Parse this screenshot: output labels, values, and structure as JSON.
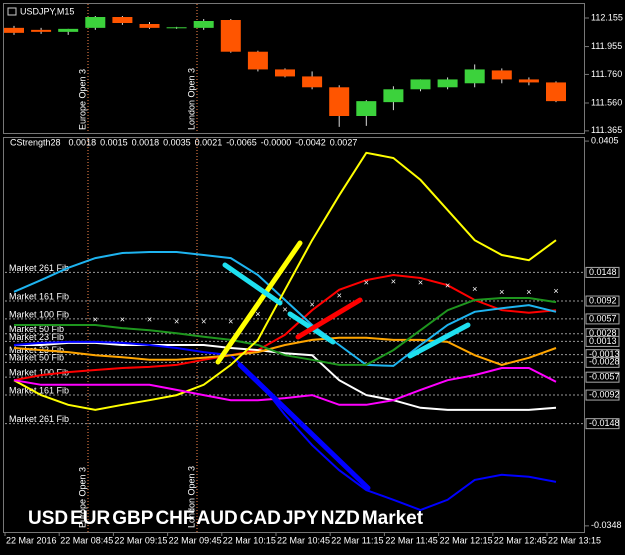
{
  "chart_data": [
    {
      "type": "candlestick",
      "title": "USDJPY,M15",
      "open": [
        112.086,
        112.072,
        112.058,
        112.086,
        112.162,
        112.113,
        112.086,
        112.086,
        112.141,
        111.919,
        111.795,
        111.746,
        111.67,
        111.469,
        111.566,
        111.656,
        111.67,
        111.698,
        111.788,
        111.725,
        111.704
      ],
      "high": [
        112.1,
        112.086,
        112.079,
        112.169,
        112.169,
        112.127,
        112.093,
        112.148,
        112.148,
        111.926,
        111.802,
        111.781,
        111.684,
        111.58,
        111.677,
        111.725,
        111.739,
        111.83,
        111.802,
        111.739,
        111.711
      ],
      "low": [
        112.037,
        112.044,
        112.037,
        112.072,
        112.107,
        112.079,
        112.079,
        112.072,
        111.912,
        111.781,
        111.739,
        111.656,
        111.393,
        111.4,
        111.51,
        111.642,
        111.656,
        111.67,
        111.698,
        111.684,
        111.566
      ],
      "close": [
        112.051,
        112.058,
        112.079,
        112.162,
        112.12,
        112.086,
        112.09,
        112.134,
        111.919,
        111.795,
        111.746,
        111.67,
        111.469,
        111.573,
        111.656,
        111.725,
        111.725,
        111.795,
        111.725,
        111.704,
        111.573
      ],
      "up_color": "#3cd23c",
      "down_color": "#ff5500",
      "ylim": [
        111.35,
        112.26
      ],
      "yticks": [
        112.155,
        111.955,
        {
          "value": 111.76,
          "label": "111.760"
        },
        {
          "value": 111.56,
          "label": "111.560"
        },
        111.365
      ],
      "sessions": [
        "Europe Open 3",
        "London Open 3"
      ]
    },
    {
      "type": "line",
      "title": "CStrength28",
      "readings": [
        "0.0018",
        "0.0015",
        "0.0018",
        "0.0035",
        "0.0021",
        "-0.0065",
        "-0.0000",
        "-0.0042",
        "0.0027"
      ],
      "categories": [
        "22 Mar 2016",
        null,
        "22 Mar 08:45",
        null,
        "22 Mar 09:15",
        null,
        "22 Mar 09:45",
        null,
        "22 Mar 10:15",
        null,
        "22 Mar 10:45",
        null,
        "22 Mar 11:15",
        null,
        "22 Mar 11:45",
        null,
        "22 Mar 12:15",
        null,
        "22 Mar 12:45",
        null,
        "22 Mar 13:15"
      ],
      "series": [
        {
          "name": "USD",
          "color": "#ff0000",
          "values": [
            -0.0063,
            -0.0053,
            -0.0047,
            -0.0043,
            -0.0039,
            -0.0037,
            -0.0033,
            -0.0023,
            -0.0014,
            -0.0004,
            0.0026,
            0.0074,
            0.0114,
            0.0133,
            0.0143,
            0.0137,
            0.0123,
            0.0094,
            0.0074,
            0.0069,
            0.0074
          ]
        },
        {
          "name": "EUR",
          "color": "#ffffff",
          "values": [
            0.0006,
            0.0006,
            0.001,
            0.001,
            0.0006,
            0.0006,
            0.0006,
            0.0006,
            0.0,
            -0.0004,
            -0.001,
            -0.0014,
            -0.0063,
            -0.0092,
            -0.0102,
            -0.0117,
            -0.0121,
            -0.0121,
            -0.0121,
            -0.0121,
            -0.0117
          ]
        },
        {
          "name": "GBP",
          "color": "#0000ff",
          "values": [
            0.0006,
            0.001,
            0.0012,
            0.0012,
            0.001,
            0.0006,
            0.0,
            -0.0008,
            -0.0014,
            -0.0063,
            -0.0131,
            -0.019,
            -0.0239,
            -0.0278,
            -0.0297,
            -0.0317,
            -0.0297,
            -0.0258,
            -0.0248,
            -0.0252,
            -0.0262
          ]
        },
        {
          "name": "CHF",
          "color": "#ffa500",
          "values": [
            0.0,
            -0.0004,
            -0.0008,
            -0.0014,
            -0.0018,
            -0.0023,
            -0.0023,
            -0.0019,
            -0.0014,
            -0.0008,
            0.0006,
            0.0016,
            0.002,
            0.002,
            0.0016,
            0.0016,
            0.0012,
            -0.0014,
            -0.0033,
            -0.0019,
            0.0
          ]
        },
        {
          "name": "AUD",
          "color": "#1eb4f0",
          "values": [
            0.011,
            0.0133,
            0.0157,
            0.0176,
            0.0186,
            0.0188,
            0.0188,
            0.0182,
            0.0176,
            0.0143,
            0.0094,
            0.0045,
            0.0006,
            -0.0033,
            -0.0035,
            0.0006,
            0.0045,
            0.0071,
            0.0078,
            0.0084,
            0.0071
          ]
        },
        {
          "name": "CAD",
          "color": "#1e961e",
          "values": [
            0.0045,
            0.0045,
            0.0045,
            0.0045,
            0.0039,
            0.0035,
            0.0029,
            0.0022,
            0.0016,
            0.0006,
            -0.0014,
            -0.0023,
            -0.0033,
            -0.0033,
            -0.0004,
            0.0035,
            0.0074,
            0.0094,
            0.0098,
            0.0098,
            0.009
          ]
        },
        {
          "name": "JPY",
          "color": "#ffff00",
          "values": [
            -0.0063,
            -0.0092,
            -0.0111,
            -0.0121,
            -0.0111,
            -0.0102,
            -0.0092,
            -0.0072,
            -0.0033,
            0.0016,
            0.0114,
            0.0211,
            0.0299,
            0.0382,
            0.0372,
            0.0329,
            0.027,
            0.0211,
            0.0182,
            0.0172,
            0.0211
          ]
        },
        {
          "name": "NZD",
          "color": "#ff00ff",
          "values": [
            -0.0063,
            -0.0072,
            -0.0072,
            -0.0072,
            -0.0072,
            -0.0072,
            -0.0082,
            -0.0092,
            -0.0102,
            -0.0102,
            -0.0098,
            -0.0092,
            -0.0111,
            -0.0111,
            -0.0102,
            -0.0082,
            -0.0063,
            -0.0053,
            -0.0039,
            -0.0039,
            -0.0066
          ]
        },
        {
          "name": "Market",
          "color": "#a0a0a0",
          "marker": "x",
          "values": [
            null,
            null,
            null,
            0.0055,
            0.0055,
            0.0055,
            0.0051,
            0.0051,
            0.0051,
            0.0065,
            0.0074,
            0.0084,
            0.0102,
            0.0127,
            0.0129,
            0.0127,
            0.0121,
            0.0114,
            0.0108,
            0.0108,
            0.011
          ]
        }
      ],
      "levels": [
        {
          "name": "Market 261 Fib",
          "value": 0.0148
        },
        {
          "name": "Market 161 Fib",
          "value": 0.0092
        },
        {
          "name": "Market 100 Fib",
          "value": 0.0057
        },
        {
          "name": "Market 50 Fib",
          "value": 0.0028
        },
        {
          "name": "Market 23 Fib",
          "value": 0.0013
        },
        {
          "name": "Market 23 Fib",
          "value": -0.0013
        },
        {
          "name": "Market 50 Fib",
          "value": -0.0028
        },
        {
          "name": "Market 100 Fib",
          "value": -0.0057
        },
        {
          "name": "Market 161 Fib",
          "value": -0.0092
        },
        {
          "name": "Market 261 Fib",
          "value": -0.0148
        }
      ],
      "ylim": [
        -0.036,
        0.0413
      ],
      "yticks": [
        0.0405,
        -0.0348
      ]
    }
  ]
}
